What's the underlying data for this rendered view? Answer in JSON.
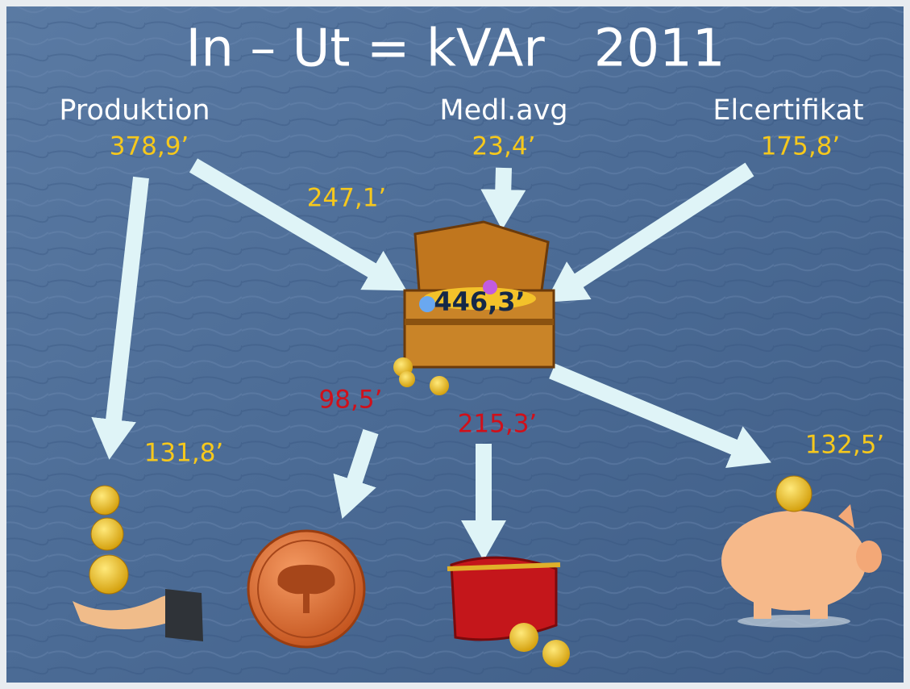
{
  "title": "In – Ut = kVAr   2011",
  "sources": [
    {
      "label": "Produktion",
      "amount": "378,9’"
    },
    {
      "label": "Medl.avg",
      "amount": "23,4’"
    },
    {
      "label": "Elcertifikat",
      "amount": "175,8’"
    }
  ],
  "flows": {
    "production_to_chest": "247,1’"
  },
  "chest": {
    "total": "446,3’"
  },
  "outputs": [
    {
      "amount": "131,8’"
    },
    {
      "amount": "98,5’"
    },
    {
      "amount": "215,3’"
    },
    {
      "amount": "132,5’"
    }
  ]
}
